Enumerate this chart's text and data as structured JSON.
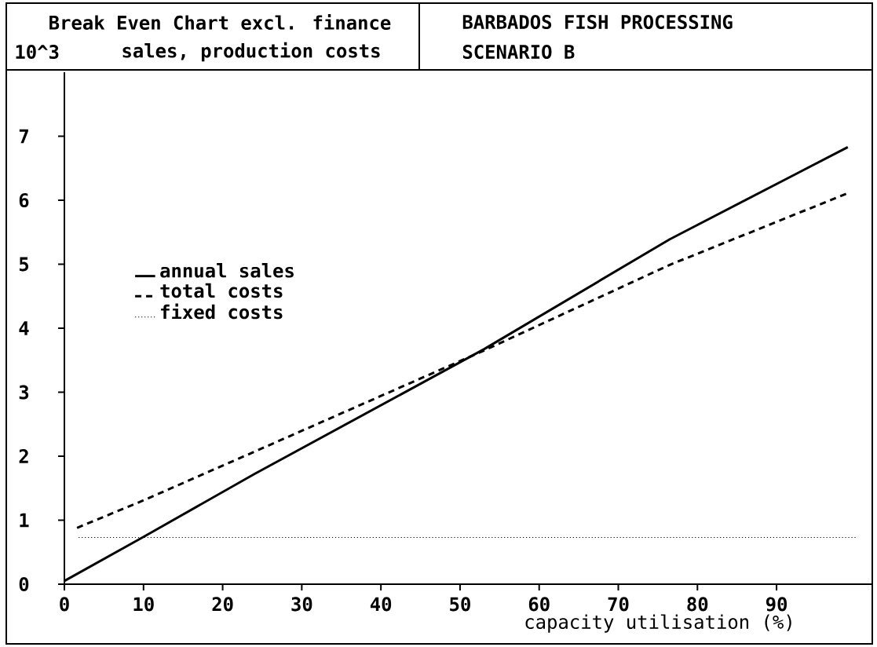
{
  "chart_data": {
    "type": "line",
    "title": "Break Even Chart excl. finance",
    "subtitle": "BARBADOS FISH PROCESSING",
    "ylabel": "sales, production costs",
    "xlabel": "capacity utilisation (%)",
    "annotations": [
      "10^3",
      "SCENARIO B"
    ],
    "xlim": [
      0,
      102
    ],
    "ylim": [
      0,
      8
    ],
    "xticks": [
      0,
      10,
      20,
      30,
      40,
      50,
      60,
      70,
      80,
      90
    ],
    "yticks": [
      0,
      1,
      2,
      3,
      4,
      5,
      6,
      7
    ],
    "legend": "left",
    "series": [
      {
        "name": "annual sales",
        "color": "#000000",
        "line_style": "solid",
        "x": [
          0,
          10,
          24,
          53,
          76.5,
          99
        ],
        "values": [
          0.05,
          0.74,
          1.72,
          3.67,
          5.39,
          6.83
        ]
      },
      {
        "name": "total costs",
        "color": "#000000",
        "line_style": "dashed",
        "x": [
          1.6,
          10,
          24,
          53,
          76.5,
          99
        ],
        "values": [
          0.88,
          1.31,
          2.07,
          3.65,
          4.99,
          6.11
        ]
      },
      {
        "name": "fixed costs",
        "color": "#000000",
        "line_style": "dotted",
        "x": [
          1.8,
          100
        ],
        "values": [
          0.73,
          0.73
        ]
      }
    ]
  }
}
